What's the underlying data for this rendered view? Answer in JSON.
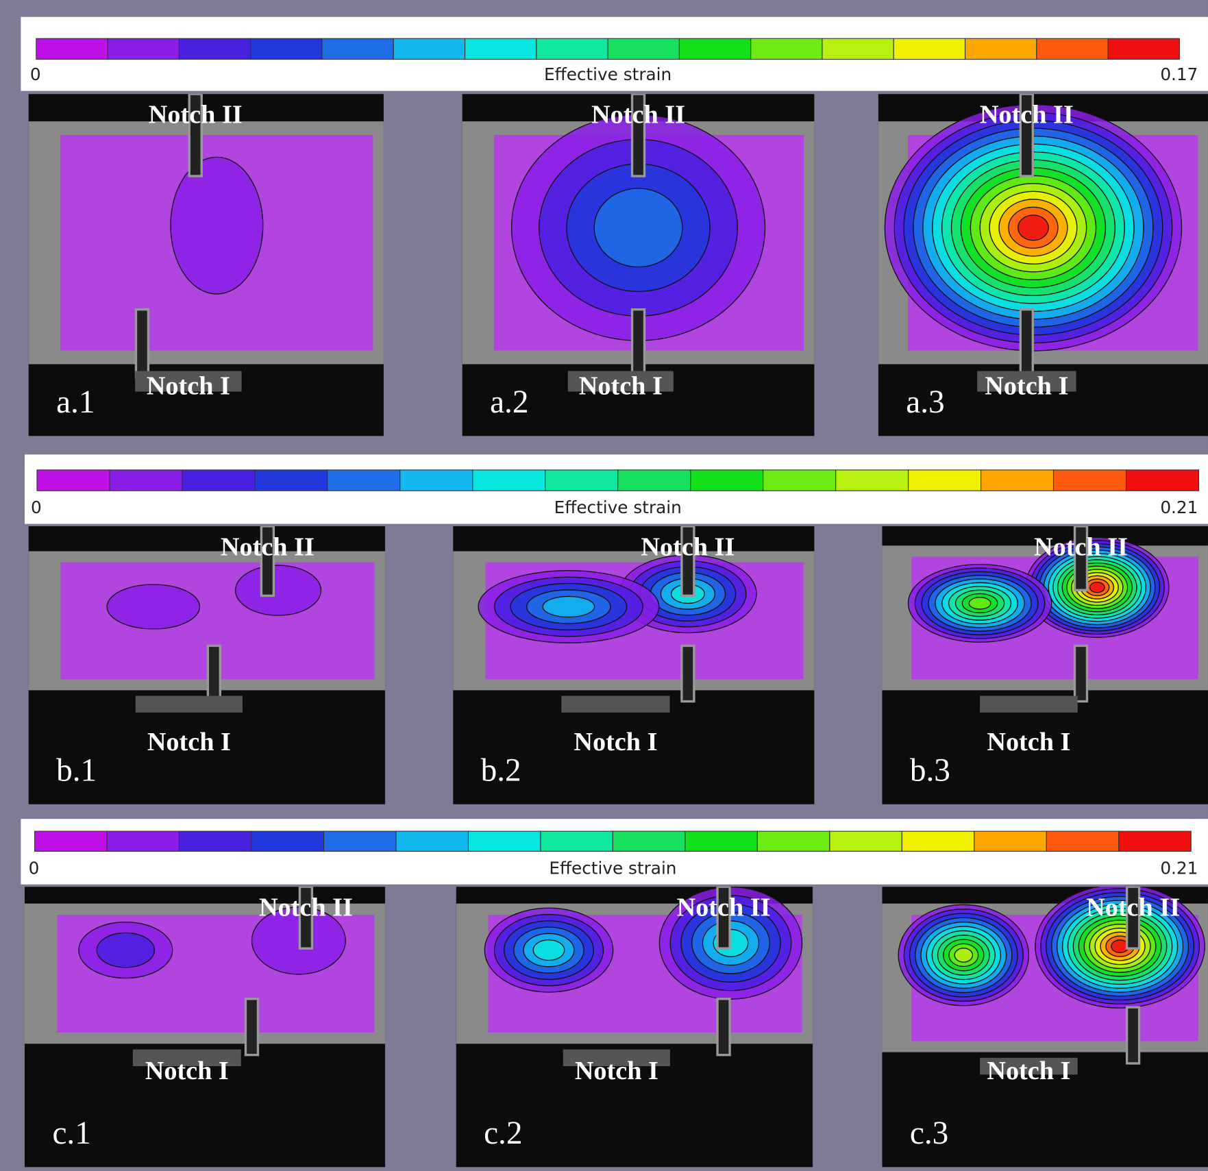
{
  "colorbars": [
    {
      "min": "0",
      "label": "Effective strain",
      "max": "0.17"
    },
    {
      "min": "0",
      "label": "Effective strain",
      "max": "0.21"
    },
    {
      "min": "0",
      "label": "Effective strain",
      "max": "0.21"
    }
  ],
  "panels": [
    {
      "label": "a.1",
      "top_notch": "Notch II",
      "bottom_notch": "Notch I"
    },
    {
      "label": "a.2",
      "top_notch": "Notch II",
      "bottom_notch": "Notch I"
    },
    {
      "label": "a.3",
      "top_notch": "Notch II",
      "bottom_notch": "Notch I"
    },
    {
      "label": "b.1",
      "top_notch": "Notch II",
      "bottom_notch": "Notch I"
    },
    {
      "label": "b.2",
      "top_notch": "Notch II",
      "bottom_notch": "Notch I"
    },
    {
      "label": "b.3",
      "top_notch": "Notch II",
      "bottom_notch": "Notch I"
    },
    {
      "label": "c.1",
      "top_notch": "Notch II",
      "bottom_notch": "Notch I"
    },
    {
      "label": "c.2",
      "top_notch": "Notch II",
      "bottom_notch": "Notch I"
    },
    {
      "label": "c.3",
      "top_notch": "Notch II",
      "bottom_notch": "Notch I"
    }
  ]
}
